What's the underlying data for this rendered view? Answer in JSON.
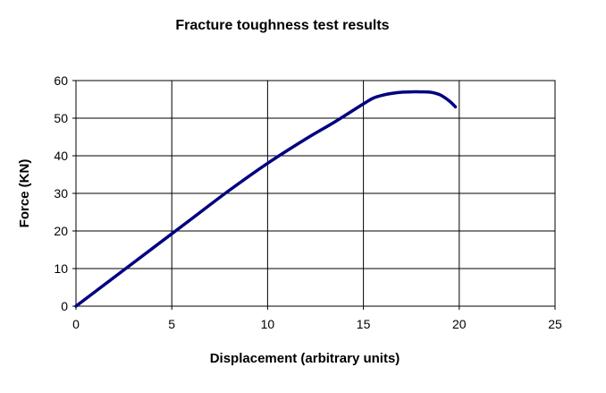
{
  "chart_data": {
    "type": "line",
    "title": "Fracture toughness test results",
    "xlabel": "Displacement (arbitrary units)",
    "ylabel": "Force (KN)",
    "xlim": [
      0,
      25
    ],
    "ylim": [
      0,
      60
    ],
    "xticks": [
      "0",
      "5",
      "10",
      "15",
      "20",
      "25"
    ],
    "yticks": [
      "0",
      "10",
      "20",
      "30",
      "40",
      "50",
      "60"
    ],
    "grid": true,
    "legend": "none",
    "line_color": "#000080",
    "series": [
      {
        "x": [
          0,
          2,
          4,
          6,
          8,
          10,
          12,
          13.5,
          15,
          15.5,
          16,
          16.5,
          17,
          17.5,
          18,
          18.5,
          19,
          19.5,
          19.8
        ],
        "y": [
          0,
          7.7,
          15.4,
          23.1,
          30.8,
          38,
          44.5,
          49,
          53.8,
          55.3,
          56.1,
          56.6,
          56.9,
          57,
          57,
          56.9,
          56.2,
          54.5,
          53
        ]
      }
    ]
  }
}
